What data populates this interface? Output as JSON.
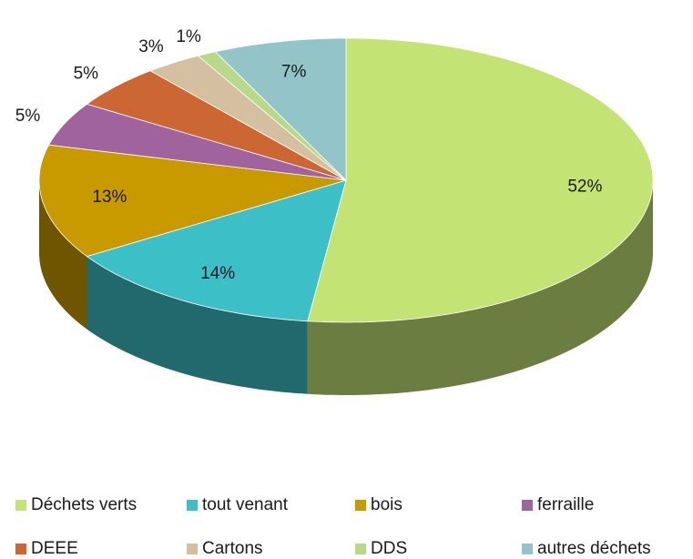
{
  "chart_data": {
    "type": "pie3d",
    "categories": [
      "Déchets verts",
      "tout venant",
      "bois",
      "ferraille",
      "DEEE",
      "Cartons",
      "DDS",
      "autres déchets"
    ],
    "values": [
      52,
      14,
      13,
      5,
      5,
      3,
      1,
      7
    ],
    "value_labels": [
      "52%",
      "14%",
      "13%",
      "5%",
      "5%",
      "3%",
      "1%",
      "7%"
    ],
    "colors": [
      "#c3e374",
      "#3dbfc8",
      "#c99a00",
      "#a0639e",
      "#cc6633",
      "#d4c0a0",
      "#b8d98a",
      "#93c4c8"
    ],
    "legend": "bottom"
  }
}
